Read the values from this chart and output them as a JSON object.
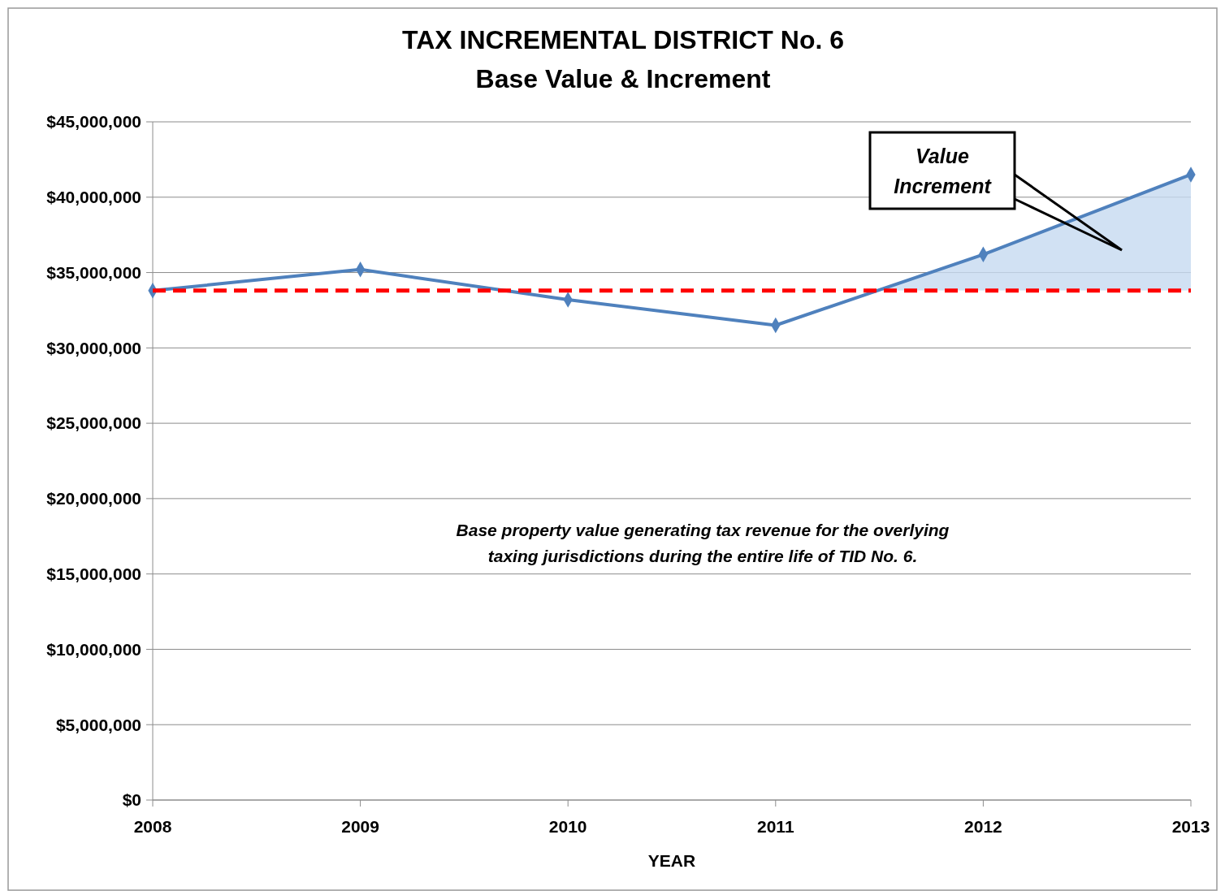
{
  "chart_data": {
    "type": "line",
    "title": "TAX INCREMENTAL DISTRICT No. 6",
    "subtitle": "Base Value & Increment",
    "xlabel": "YEAR",
    "x": [
      2008,
      2009,
      2010,
      2011,
      2012,
      2013
    ],
    "series": [
      {
        "color": "#4f81bd",
        "values": [
          33800000,
          35200000,
          33200000,
          31500000,
          36200000,
          41500000
        ],
        "lower": [
          null,
          null,
          null,
          33800000,
          33800000,
          33800000
        ],
        "upper": [
          null,
          null,
          null,
          31500000,
          36200000,
          41500000
        ]
      }
    ],
    "xlim": [
      2008,
      2013
    ],
    "xticks": [
      2008,
      2009,
      2010,
      2011,
      2012,
      2013
    ],
    "ylim": [
      0,
      45000000
    ],
    "yticks": [
      {
        "value": 0,
        "label": "$0"
      },
      {
        "value": 5000000,
        "label": "$5,000,000"
      },
      {
        "value": 10000000,
        "label": "$10,000,000"
      },
      {
        "value": 15000000,
        "label": "$15,000,000"
      },
      {
        "value": 20000000,
        "label": "$20,000,000"
      },
      {
        "value": 25000000,
        "label": "$25,000,000"
      },
      {
        "value": 30000000,
        "label": "$30,000,000"
      },
      {
        "value": 35000000,
        "label": "$35,000,000"
      },
      {
        "value": 40000000,
        "label": "$40,000,000"
      },
      {
        "value": 45000000,
        "label": "$45,000,000"
      }
    ],
    "ref_lines": [
      {
        "axis": "y",
        "value": 33800000,
        "color": "#ff0000",
        "line_style": "dashed"
      }
    ],
    "annotations": [
      "Value\nIncrement",
      "Base property value generating tax revenue for the overlying\ntaxing jurisdictions during the entire life of TID No. 6."
    ],
    "grid": "y",
    "marker": "diamond",
    "line_style": "solid"
  }
}
